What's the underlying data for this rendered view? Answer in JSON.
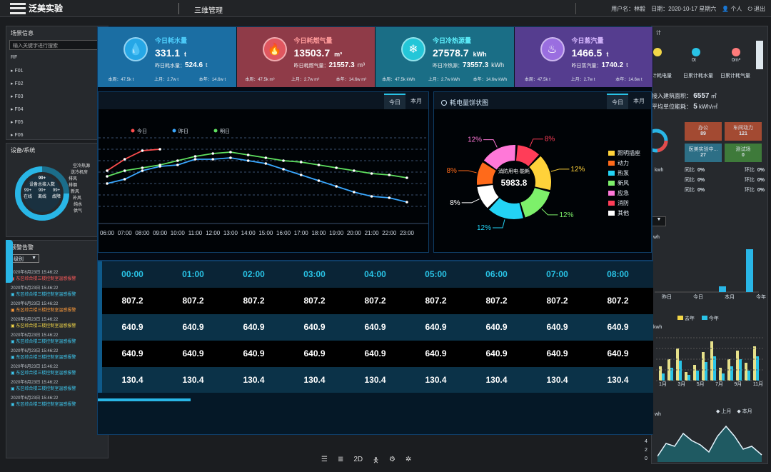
{
  "topbar": {
    "logo_text": "泛美实验",
    "module_title": "三维管理",
    "user_label": "用户名：",
    "user_name": "林毅",
    "date_label": "日期：",
    "date": "2020-10-17",
    "weekday": "星期六",
    "personal": "个人",
    "logout": "退出"
  },
  "left": {
    "scene_title": "场景信息",
    "search_placeholder": "输入关键字进行搜索",
    "floors": [
      "RF",
      "F01",
      "F02",
      "F03",
      "F04",
      "F05",
      "F06"
    ],
    "device_title": "设备/系统",
    "donut_top": "99+",
    "donut_mid": "设备总接入数",
    "donut_a": "99+",
    "donut_b": "99+",
    "donut_c": "99+",
    "donut_a_l": "在线",
    "donut_b_l": "离线",
    "donut_c_l": "故障",
    "side_labels": [
      "空冷热源",
      "送冷机房",
      "排风",
      "排烟",
      "新风",
      "补风",
      "纯水",
      "供气"
    ],
    "alarm_title": "预警告警",
    "level_select": "级别",
    "alarms": [
      {
        "time": "2020年6月23日 15:46:22",
        "msg": "东区综合楼三楼控制室温感报警",
        "color": "#ff5a5a"
      },
      {
        "time": "2020年6月23日 15:46:22",
        "msg": "东区综合楼三楼控制室温感报警",
        "color": "#3ec9f0"
      },
      {
        "time": "2020年6月23日 15:46:22",
        "msg": "东区综合楼三楼控制室温感报警",
        "color": "#ff9b3a"
      },
      {
        "time": "2020年6月23日 15:46:22",
        "msg": "东区综合楼三楼控制室温感报警",
        "color": "#f2d648"
      },
      {
        "time": "2020年6月23日 15:46:22",
        "msg": "东区综合楼三楼控制室温感报警",
        "color": "#3ec9f0"
      },
      {
        "time": "2020年6月23日 15:46:22",
        "msg": "东区综合楼三楼控制室温感报警",
        "color": "#3ec9f0"
      },
      {
        "time": "2020年6月23日 15:46:22",
        "msg": "东区综合楼三楼控制室温感报警",
        "color": "#3ec9f0"
      },
      {
        "time": "2020年6月23日 15:46:22",
        "msg": "东区综合楼三楼控制室温感报警",
        "color": "#3ec9f0"
      },
      {
        "time": "2020年6月23日 15:46:22",
        "msg": "东区综合楼三楼控制室温感报警",
        "color": "#3ec9f0"
      }
    ]
  },
  "cards": [
    {
      "label": "今日耗水量",
      "value": "331.1",
      "unit": "t",
      "yd_label": "昨日耗水量：",
      "yd_value": "524.6",
      "yd_unit": "t",
      "f1": "本周：47.5k t",
      "f2": "上月：2.7w t",
      "f3": "本年：14.6w t",
      "bg": "#1b6ea3",
      "icon_bg": "#26a7e6",
      "label_color": "#4fd1ff",
      "icon": "💧"
    },
    {
      "label": "今日耗燃气量",
      "value": "13503.7",
      "unit": "m³",
      "yd_label": "昨日耗燃气量：",
      "yd_value": "21557.3",
      "yd_unit": "m³",
      "f1": "本周：47.5k m³",
      "f2": "上月：2.7w m³",
      "f3": "本年：14.6w m³",
      "bg": "#8f3b48",
      "icon_bg": "#e0565f",
      "label_color": "#ff9a9a",
      "icon": "🔥"
    },
    {
      "label": "今日冷热源量",
      "value": "27578.7",
      "unit": "kWh",
      "yd_label": "昨日冷热源：",
      "yd_value": "73557.3",
      "yd_unit": "kWh",
      "f1": "本周：47.5k kWh",
      "f2": "上月：2.7w kWh",
      "f3": "本年：14.6w kWh",
      "bg": "#1a6e86",
      "icon_bg": "#24c6d8",
      "label_color": "#5ff2ff",
      "icon": "❄"
    },
    {
      "label": "今日蒸汽量",
      "value": "1466.5",
      "unit": "t",
      "yd_label": "昨日蒸汽量：",
      "yd_value": "1740.2",
      "yd_unit": "t",
      "f1": "本周：47.5k t",
      "f2": "上月：2.7w t",
      "f3": "本年：14.6w t",
      "bg": "#553d8f",
      "icon_bg": "#9a6ee0",
      "label_color": "#d6b8ff",
      "icon": "♨"
    }
  ],
  "line_panel": {
    "tab_day": "今日",
    "tab_month": "本月",
    "legend": [
      "今日",
      "昨日",
      "明日"
    ]
  },
  "pie_panel": {
    "title": "耗电量饼状图",
    "tab_day": "今日",
    "tab_month": "本月",
    "center_label": "消防用电·能耗",
    "center_value": "5983.8"
  },
  "table": {
    "headers": [
      "00:00",
      "01:00",
      "02:00",
      "03:00",
      "04:00",
      "05:00",
      "06:00",
      "07:00",
      "08:00"
    ],
    "rows": [
      [
        "807.2",
        "807.2",
        "807.2",
        "807.2",
        "807.2",
        "807.2",
        "807.2",
        "807.2",
        "807.2"
      ],
      [
        "640.9",
        "640.9",
        "640.9",
        "640.9",
        "640.9",
        "640.9",
        "640.9",
        "640.9",
        "640.9"
      ],
      [
        "640.9",
        "640.9",
        "640.9",
        "640.9",
        "640.9",
        "640.9",
        "640.9",
        "640.9",
        "640.9"
      ],
      [
        "130.4",
        "130.4",
        "130.4",
        "130.4",
        "130.4",
        "130.4",
        "130.4",
        "130.4",
        "130.4"
      ]
    ]
  },
  "right": {
    "title": "计",
    "d1": "0t",
    "d2": "0t",
    "d3": "0m³",
    "l1": "计耗电量",
    "l2": "日累计耗水量",
    "l3": "日累计耗气量",
    "area_label": "接入建筑面积：",
    "area_value": "6557",
    "area_unit": "㎡",
    "avg_label": "平均单位能耗：",
    "avg_value": "5",
    "avg_unit": "kWh/㎡",
    "boxes": [
      {
        "label": "办公",
        "value": "89",
        "color": "#a34a32"
      },
      {
        "label": "车间动力",
        "value": "121",
        "color": "#a34a32"
      },
      {
        "label": "医美实验中...",
        "value": "27",
        "color": "#2d6f86"
      },
      {
        "label": "测试场",
        "value": "0",
        "color": "#3e7a3a"
      }
    ],
    "ring_unit": "kwh",
    "stat_rows": [
      {
        "a": "同比",
        "av": "0%",
        "b": "环比",
        "bv": "0%"
      },
      {
        "a": "同比",
        "av": "0%",
        "b": "环比",
        "bv": "0%"
      },
      {
        "a": "同比",
        "av": "0%",
        "b": "环比",
        "bv": "0%"
      }
    ],
    "bar_unit": "wh",
    "bar_cats": [
      "昨日",
      "今日",
      "本月",
      "今年"
    ],
    "legend_last": "去年",
    "legend_this": "今年",
    "kwh": "kwh",
    "month_ticks": [
      "1月",
      "3月",
      "5月",
      "7月",
      "9月",
      "11月"
    ],
    "wh": "wh",
    "area_leg1": "上月",
    "area_leg2": "本月",
    "y_ticks": [
      "4",
      "2",
      "0"
    ]
  },
  "chart_data": [
    {
      "type": "line",
      "x": [
        "06:00",
        "07:00",
        "08:00",
        "09:00",
        "10:00",
        "11:00",
        "12:00",
        "13:00",
        "14:00",
        "15:00",
        "16:00",
        "17:00",
        "18:00",
        "19:00",
        "20:00",
        "21:00",
        "22:00",
        "23:00"
      ],
      "series": [
        {
          "name": "今日",
          "color": "#ff4d4d",
          "values": [
            52,
            60,
            66,
            67,
            null,
            null,
            null,
            null,
            null,
            null,
            null,
            null,
            null,
            null,
            null,
            null,
            null,
            null
          ]
        },
        {
          "name": "昨日",
          "color": "#3aa8ff",
          "values": [
            43,
            46,
            52,
            55,
            56,
            60,
            60,
            61,
            59,
            57,
            53,
            49,
            45,
            41,
            37,
            34,
            33,
            30
          ]
        },
        {
          "name": "明日",
          "color": "#5fe05f",
          "values": [
            48,
            52,
            54,
            56,
            59,
            62,
            64,
            65,
            63,
            61,
            59,
            58,
            56,
            54,
            52,
            50,
            49,
            47
          ]
        }
      ],
      "grid": true,
      "legend": "top-left"
    },
    {
      "type": "pie",
      "labels": [
        "照明插座",
        "动力",
        "热泵",
        "新风",
        "应急",
        "消防",
        "其他"
      ],
      "values": [
        12,
        8,
        12,
        12,
        12,
        8,
        8
      ],
      "colors": [
        "#ffd23a",
        "#ff6a1a",
        "#23d3f5",
        "#7df06a",
        "#ff78d8",
        "#ff3d58",
        "#ffffff"
      ],
      "slice_labels": [
        "12%",
        "8%",
        "12%",
        "12%",
        "12%",
        "8%",
        "8%"
      ]
    }
  ],
  "page_icons": [
    "menu-icon",
    "layers-icon",
    "2d-icon",
    "person-icon",
    "settings-icon",
    "gear-icon"
  ]
}
